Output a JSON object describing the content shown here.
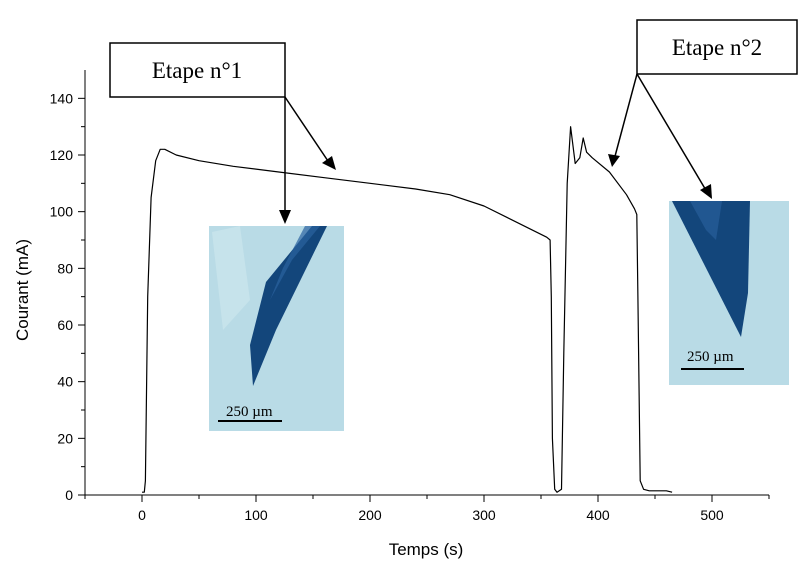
{
  "chart_data": {
    "type": "line",
    "title": "",
    "xlabel": "Temps (s)",
    "ylabel": "Courant (mA)",
    "xlim": [
      -50,
      550
    ],
    "ylim": [
      0,
      150
    ],
    "x_ticks": [
      0,
      100,
      200,
      300,
      400,
      500
    ],
    "y_ticks": [
      0,
      20,
      40,
      60,
      80,
      100,
      120,
      140
    ],
    "grid": false,
    "series": [
      {
        "x": [
          0,
          2,
          3,
          5,
          8,
          12,
          16,
          20,
          30,
          50,
          80,
          120,
          160,
          200,
          240,
          270,
          300,
          320,
          340,
          355,
          358,
          359,
          360,
          362,
          364,
          368,
          370,
          373,
          376,
          380,
          384,
          387,
          390,
          395,
          410,
          425,
          432,
          434,
          435,
          437,
          440,
          445,
          450,
          460,
          465
        ],
        "y": [
          1,
          1,
          5,
          70,
          105,
          118,
          122,
          122,
          120,
          118,
          116,
          114,
          112,
          110,
          108,
          106,
          102,
          98,
          94,
          91,
          90,
          70,
          20,
          2,
          1,
          2,
          50,
          110,
          130,
          117,
          119,
          126,
          121,
          119,
          114,
          106,
          101,
          99,
          70,
          5,
          2,
          1.5,
          1.5,
          1.5,
          1
        ]
      }
    ],
    "annotations": [
      {
        "text": "Etape n°1",
        "scale_label": "250 µm"
      },
      {
        "text": "Etape n°2",
        "scale_label": "250 µm"
      }
    ]
  }
}
